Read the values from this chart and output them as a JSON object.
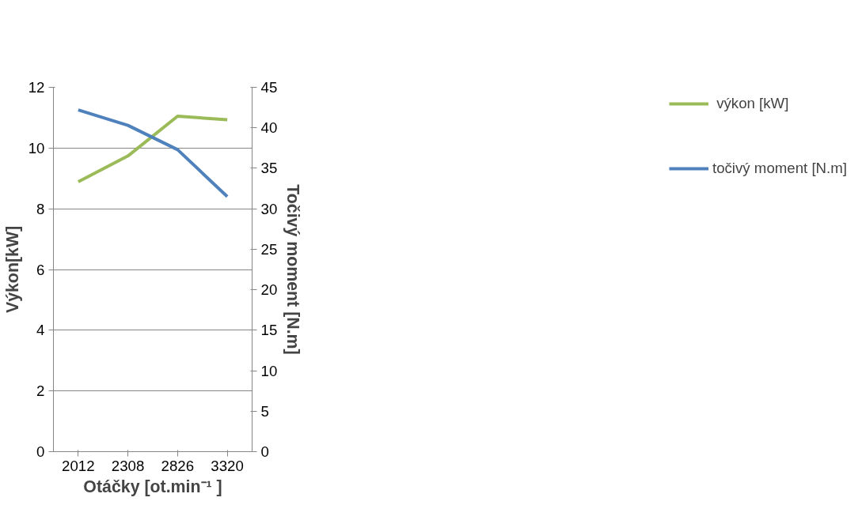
{
  "chart_data": {
    "type": "line",
    "xlabel": "Otáčky [ot.min⁻¹ ]",
    "ylabel": "Výkon[kW]",
    "y2label": "Točivý moment [N.m]",
    "categories": [
      "2012",
      "2308",
      "2826",
      "3320"
    ],
    "series": [
      {
        "name": " výkon [kW]",
        "color": "#9bbb59",
        "values": [
          8.89,
          9.74,
          11.05,
          10.93
        ]
      },
      {
        "name": "točivý moment [N.m]",
        "color": "#4f81bd",
        "axis": "y2",
        "values": [
          42.2,
          40.3,
          37.3,
          31.5
        ]
      }
    ],
    "ylim": [
      0,
      12
    ],
    "yticks": [
      0,
      2,
      4,
      6,
      8,
      10,
      12
    ],
    "y2lim": [
      0,
      45
    ],
    "y2ticks": [
      0,
      5,
      10,
      15,
      20,
      25,
      30,
      35,
      40,
      45
    ],
    "grid": "y",
    "legend": "right",
    "marker": "none",
    "line_style": "solid"
  }
}
